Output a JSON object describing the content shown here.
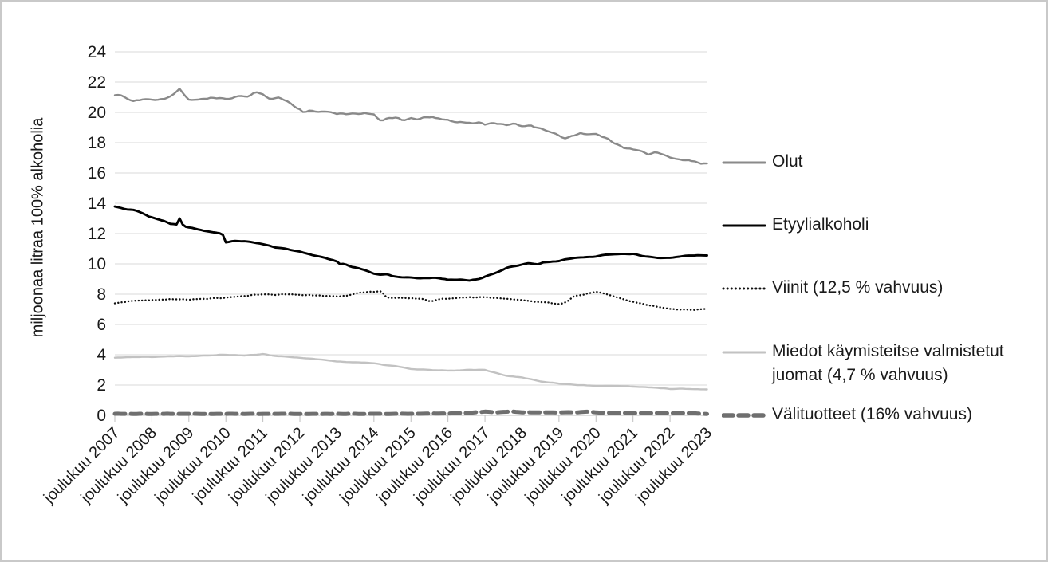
{
  "chart_data": {
    "type": "line",
    "ylabel": "miljoonaa litraa 100% alkoholia",
    "ylim": [
      0,
      24
    ],
    "y_tick_step": 2,
    "y_ticks": [
      0,
      2,
      4,
      6,
      8,
      10,
      12,
      14,
      16,
      18,
      20,
      22,
      24
    ],
    "grid": "horizontal-only",
    "legend_position": "right",
    "x_categories": [
      "joulukuu 2007",
      "joulukuu 2008",
      "joulukuu 2009",
      "joulukuu 2010",
      "joulukuu 2011",
      "joulukuu 2012",
      "joulukuu 2013",
      "joulukuu 2014",
      "joulukuu 2015",
      "joulukuu 2016",
      "joulukuu 2017",
      "joulukuu 2018",
      "joulukuu 2019",
      "joulukuu 2020",
      "joulukuu 2021",
      "joulukuu 2022",
      "joulukuu 2023"
    ],
    "x_note": "monthly series from Dec 2007 to Dec 2023, axis ticks at each December",
    "points_per_year": 12,
    "series": [
      {
        "id": "olut",
        "name": "Olut",
        "line_style": "solid",
        "color": "#8a8a8a",
        "width": 2.4,
        "noise": 0.07,
        "december_values": [
          21.1,
          20.8,
          20.9,
          20.9,
          21.2,
          20.2,
          19.9,
          19.8,
          19.6,
          19.5,
          19.2,
          19.1,
          18.5,
          18.5,
          17.5,
          17.0,
          16.6
        ],
        "anchors": [
          [
            0,
            21.15
          ],
          [
            0.3,
            21.0
          ],
          [
            0.5,
            20.75
          ],
          [
            0.8,
            20.9
          ],
          [
            1,
            20.8
          ],
          [
            1.3,
            20.9
          ],
          [
            1.5,
            21.0
          ],
          [
            1.75,
            21.5
          ],
          [
            1.9,
            21.1
          ],
          [
            2,
            20.85
          ],
          [
            2.3,
            20.8
          ],
          [
            2.6,
            21.0
          ],
          [
            2.8,
            20.9
          ],
          [
            3,
            20.9
          ],
          [
            3.3,
            21.0
          ],
          [
            3.6,
            21.1
          ],
          [
            3.82,
            21.35
          ],
          [
            4,
            21.2
          ],
          [
            4.2,
            20.85
          ],
          [
            4.4,
            21.0
          ],
          [
            4.6,
            20.8
          ],
          [
            4.9,
            20.35
          ],
          [
            5,
            20.2
          ],
          [
            5.1,
            20.0
          ],
          [
            5.3,
            20.1
          ],
          [
            5.5,
            20.0
          ],
          [
            5.8,
            20.05
          ],
          [
            6,
            19.85
          ],
          [
            6.2,
            19.9
          ],
          [
            6.5,
            19.95
          ],
          [
            6.8,
            19.9
          ],
          [
            7,
            19.85
          ],
          [
            7.2,
            19.45
          ],
          [
            7.4,
            19.6
          ],
          [
            7.6,
            19.65
          ],
          [
            7.8,
            19.45
          ],
          [
            8,
            19.6
          ],
          [
            8.2,
            19.5
          ],
          [
            8.4,
            19.7
          ],
          [
            8.6,
            19.65
          ],
          [
            8.8,
            19.55
          ],
          [
            9,
            19.5
          ],
          [
            9.2,
            19.4
          ],
          [
            9.4,
            19.35
          ],
          [
            9.6,
            19.3
          ],
          [
            9.8,
            19.35
          ],
          [
            10,
            19.2
          ],
          [
            10.2,
            19.3
          ],
          [
            10.4,
            19.25
          ],
          [
            10.6,
            19.15
          ],
          [
            10.8,
            19.25
          ],
          [
            11,
            19.1
          ],
          [
            11.2,
            19.15
          ],
          [
            11.4,
            19.0
          ],
          [
            11.6,
            18.9
          ],
          [
            11.8,
            18.65
          ],
          [
            12,
            18.45
          ],
          [
            12.2,
            18.3
          ],
          [
            12.4,
            18.5
          ],
          [
            12.6,
            18.65
          ],
          [
            12.8,
            18.55
          ],
          [
            13,
            18.55
          ],
          [
            13.2,
            18.4
          ],
          [
            13.4,
            18.1
          ],
          [
            13.6,
            17.9
          ],
          [
            13.8,
            17.65
          ],
          [
            14,
            17.55
          ],
          [
            14.2,
            17.45
          ],
          [
            14.4,
            17.25
          ],
          [
            14.6,
            17.35
          ],
          [
            14.8,
            17.2
          ],
          [
            15,
            17.05
          ],
          [
            15.2,
            16.95
          ],
          [
            15.4,
            16.85
          ],
          [
            15.6,
            16.8
          ],
          [
            15.8,
            16.65
          ],
          [
            16,
            16.6
          ]
        ]
      },
      {
        "id": "etyylialkoholi",
        "name": "Etyylialkoholi",
        "line_style": "solid",
        "color": "#000000",
        "width": 2.9,
        "noise": 0.025,
        "december_values": [
          13.8,
          13.1,
          12.4,
          11.4,
          11.3,
          10.8,
          10.1,
          9.4,
          9.1,
          9.0,
          9.2,
          10.0,
          10.2,
          10.5,
          10.65,
          10.4,
          10.55
        ],
        "anchors": [
          [
            0,
            13.8
          ],
          [
            0.3,
            13.6
          ],
          [
            0.5,
            13.55
          ],
          [
            0.7,
            13.4
          ],
          [
            0.9,
            13.15
          ],
          [
            1,
            13.1
          ],
          [
            1.3,
            12.85
          ],
          [
            1.5,
            12.65
          ],
          [
            1.7,
            12.6
          ],
          [
            1.75,
            13.0
          ],
          [
            1.85,
            12.5
          ],
          [
            2,
            12.4
          ],
          [
            2.3,
            12.25
          ],
          [
            2.6,
            12.1
          ],
          [
            2.9,
            12.0
          ],
          [
            2.95,
            11.75
          ],
          [
            3,
            11.4
          ],
          [
            3.2,
            11.5
          ],
          [
            3.5,
            11.5
          ],
          [
            3.8,
            11.4
          ],
          [
            4,
            11.3
          ],
          [
            4.3,
            11.1
          ],
          [
            4.6,
            11.0
          ],
          [
            4.9,
            10.85
          ],
          [
            5,
            10.8
          ],
          [
            5.3,
            10.6
          ],
          [
            5.6,
            10.45
          ],
          [
            5.9,
            10.25
          ],
          [
            6,
            10.15
          ],
          [
            6.05,
            9.95
          ],
          [
            6.2,
            10.0
          ],
          [
            6.4,
            9.8
          ],
          [
            6.6,
            9.7
          ],
          [
            6.8,
            9.55
          ],
          [
            7,
            9.35
          ],
          [
            7.2,
            9.25
          ],
          [
            7.3,
            9.35
          ],
          [
            7.5,
            9.2
          ],
          [
            7.8,
            9.1
          ],
          [
            8,
            9.1
          ],
          [
            8.3,
            9.05
          ],
          [
            8.6,
            9.1
          ],
          [
            8.9,
            9.0
          ],
          [
            9,
            8.95
          ],
          [
            9.3,
            8.95
          ],
          [
            9.6,
            8.9
          ],
          [
            9.9,
            9.05
          ],
          [
            10,
            9.15
          ],
          [
            10.3,
            9.4
          ],
          [
            10.6,
            9.75
          ],
          [
            10.9,
            9.9
          ],
          [
            11,
            9.95
          ],
          [
            11.2,
            10.05
          ],
          [
            11.4,
            9.95
          ],
          [
            11.6,
            10.1
          ],
          [
            11.8,
            10.15
          ],
          [
            12,
            10.2
          ],
          [
            12.2,
            10.3
          ],
          [
            12.5,
            10.4
          ],
          [
            12.8,
            10.45
          ],
          [
            13,
            10.5
          ],
          [
            13.3,
            10.6
          ],
          [
            13.6,
            10.65
          ],
          [
            14,
            10.65
          ],
          [
            14.2,
            10.55
          ],
          [
            14.5,
            10.45
          ],
          [
            14.7,
            10.35
          ],
          [
            15,
            10.4
          ],
          [
            15.3,
            10.5
          ],
          [
            15.6,
            10.55
          ],
          [
            16,
            10.55
          ]
        ]
      },
      {
        "id": "viinit",
        "name": "Viinit (12,5 % vahvuus)",
        "line_style": "dot",
        "color": "#111111",
        "width": 2.4,
        "noise": 0.035,
        "december_values": [
          7.4,
          7.6,
          7.65,
          7.75,
          8.0,
          7.95,
          7.85,
          8.15,
          7.75,
          7.7,
          7.8,
          7.6,
          7.35,
          8.15,
          7.5,
          7.05,
          7.0
        ],
        "anchors": [
          [
            0,
            7.4
          ],
          [
            0.3,
            7.5
          ],
          [
            0.6,
            7.55
          ],
          [
            1,
            7.6
          ],
          [
            1.5,
            7.65
          ],
          [
            2,
            7.65
          ],
          [
            2.5,
            7.7
          ],
          [
            3,
            7.75
          ],
          [
            3.5,
            7.9
          ],
          [
            4,
            8.0
          ],
          [
            4.3,
            7.95
          ],
          [
            4.6,
            8.0
          ],
          [
            5,
            7.95
          ],
          [
            5.5,
            7.9
          ],
          [
            6,
            7.85
          ],
          [
            6.3,
            7.9
          ],
          [
            6.6,
            8.1
          ],
          [
            6.9,
            8.15
          ],
          [
            7,
            8.15
          ],
          [
            7.2,
            8.2
          ],
          [
            7.35,
            7.75
          ],
          [
            7.6,
            7.75
          ],
          [
            8,
            7.75
          ],
          [
            8.3,
            7.7
          ],
          [
            8.55,
            7.5
          ],
          [
            8.8,
            7.7
          ],
          [
            9,
            7.7
          ],
          [
            9.3,
            7.75
          ],
          [
            9.6,
            7.8
          ],
          [
            10,
            7.8
          ],
          [
            10.3,
            7.75
          ],
          [
            10.6,
            7.7
          ],
          [
            11,
            7.6
          ],
          [
            11.3,
            7.5
          ],
          [
            11.6,
            7.45
          ],
          [
            12,
            7.35
          ],
          [
            12.2,
            7.5
          ],
          [
            12.4,
            7.85
          ],
          [
            12.6,
            7.95
          ],
          [
            12.8,
            8.05
          ],
          [
            13,
            8.15
          ],
          [
            13.1,
            8.1
          ],
          [
            13.4,
            7.9
          ],
          [
            13.7,
            7.7
          ],
          [
            14,
            7.5
          ],
          [
            14.3,
            7.35
          ],
          [
            14.6,
            7.2
          ],
          [
            15,
            7.05
          ],
          [
            15.3,
            7.0
          ],
          [
            15.6,
            6.95
          ],
          [
            16,
            7.0
          ]
        ]
      },
      {
        "id": "miedot",
        "name": "Miedot käymisteitse valmistetut juomat (4,7 % vahvuus)",
        "line_style": "solid",
        "color": "#c2c2c2",
        "width": 2.4,
        "noise": 0.015,
        "december_values": [
          3.8,
          3.85,
          3.9,
          4.0,
          4.05,
          3.8,
          3.55,
          3.45,
          3.05,
          2.95,
          3.0,
          2.5,
          2.1,
          1.95,
          1.9,
          1.75,
          1.7
        ],
        "anchors": [
          [
            0,
            3.8
          ],
          [
            0.5,
            3.85
          ],
          [
            1,
            3.85
          ],
          [
            1.5,
            3.9
          ],
          [
            2,
            3.9
          ],
          [
            2.5,
            3.95
          ],
          [
            3,
            4.0
          ],
          [
            3.5,
            3.95
          ],
          [
            4,
            4.05
          ],
          [
            4.2,
            3.95
          ],
          [
            4.5,
            3.9
          ],
          [
            5,
            3.8
          ],
          [
            5.5,
            3.7
          ],
          [
            6,
            3.55
          ],
          [
            6.5,
            3.5
          ],
          [
            7,
            3.45
          ],
          [
            7.3,
            3.3
          ],
          [
            7.6,
            3.25
          ],
          [
            8,
            3.05
          ],
          [
            8.5,
            3.0
          ],
          [
            9,
            2.95
          ],
          [
            9.5,
            3.0
          ],
          [
            10,
            3.0
          ],
          [
            10.3,
            2.8
          ],
          [
            10.6,
            2.6
          ],
          [
            11,
            2.5
          ],
          [
            11.3,
            2.35
          ],
          [
            11.6,
            2.2
          ],
          [
            12,
            2.1
          ],
          [
            12.5,
            2.0
          ],
          [
            13,
            1.95
          ],
          [
            13.5,
            1.95
          ],
          [
            14,
            1.9
          ],
          [
            14.5,
            1.85
          ],
          [
            15,
            1.75
          ],
          [
            15.5,
            1.75
          ],
          [
            16,
            1.7
          ]
        ]
      },
      {
        "id": "valituotteet",
        "name": "Välituotteet (16% vahvuus)",
        "line_style": "dash",
        "color": "#6f6f6f",
        "width": 5,
        "noise": 0.012,
        "december_values": [
          0.1,
          0.1,
          0.1,
          0.1,
          0.1,
          0.1,
          0.1,
          0.1,
          0.1,
          0.1,
          0.25,
          0.2,
          0.2,
          0.2,
          0.15,
          0.15,
          0.1
        ],
        "anchors": [
          [
            0,
            0.1
          ],
          [
            2,
            0.1
          ],
          [
            4,
            0.1
          ],
          [
            6,
            0.1
          ],
          [
            8,
            0.1
          ],
          [
            9.5,
            0.15
          ],
          [
            10,
            0.25
          ],
          [
            10.3,
            0.2
          ],
          [
            10.7,
            0.25
          ],
          [
            11,
            0.2
          ],
          [
            11.5,
            0.2
          ],
          [
            12,
            0.2
          ],
          [
            12.5,
            0.2
          ],
          [
            12.8,
            0.25
          ],
          [
            13,
            0.2
          ],
          [
            13.5,
            0.15
          ],
          [
            14,
            0.15
          ],
          [
            14.5,
            0.15
          ],
          [
            15,
            0.15
          ],
          [
            15.5,
            0.15
          ],
          [
            16,
            0.1
          ]
        ]
      }
    ]
  },
  "legend": {
    "items": [
      "Olut",
      "Etyylialkoholi",
      "Viinit (12,5 % vahvuus)",
      "Miedot käymisteitse valmistetut juomat (4,7 % vahvuus)",
      "Välituotteet (16% vahvuus)"
    ]
  },
  "colors": {
    "gridline": "#d9d9d9",
    "axis": "#bfbfbf",
    "tick_text": "#1a1a1a"
  }
}
